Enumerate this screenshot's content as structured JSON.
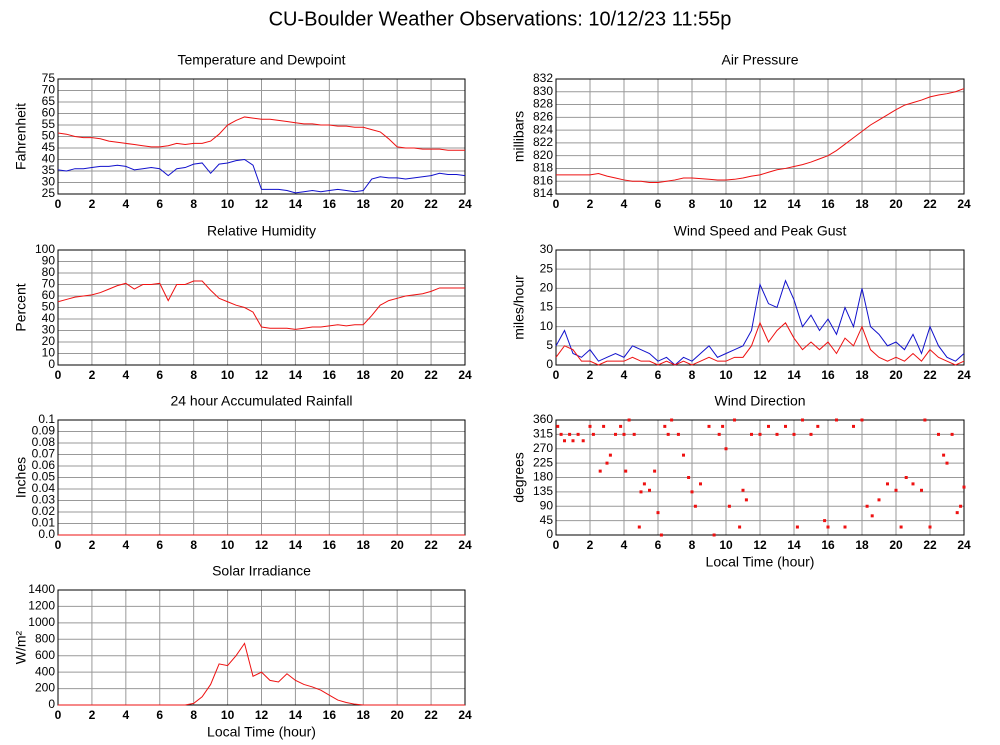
{
  "title": "CU-Boulder Weather Observations: 10/12/23 11:55p",
  "chart_data": [
    {
      "type": "line",
      "title": "Temperature and Dewpoint",
      "ylabel": "Fahrenheit",
      "grid": true,
      "x": [
        0,
        0.5,
        1,
        1.5,
        2,
        2.5,
        3,
        3.5,
        4,
        4.5,
        5,
        5.5,
        6,
        6.5,
        7,
        7.5,
        8,
        8.5,
        9,
        9.5,
        10,
        10.5,
        11,
        11.5,
        12,
        12.5,
        13,
        13.5,
        14,
        14.5,
        15,
        15.5,
        16,
        16.5,
        17,
        17.5,
        18,
        18.5,
        19,
        19.5,
        20,
        20.5,
        21,
        21.5,
        22,
        22.5,
        23,
        23.5,
        24
      ],
      "xlim": [
        0,
        24
      ],
      "xticks": [
        0,
        2,
        4,
        6,
        8,
        10,
        12,
        14,
        16,
        18,
        20,
        22,
        24
      ],
      "ylim": [
        25,
        75
      ],
      "yticks": [
        25,
        30,
        35,
        40,
        45,
        50,
        55,
        60,
        65,
        70,
        75
      ],
      "series": [
        {
          "color": "#ee1111",
          "values": [
            51.5,
            51,
            50,
            49.5,
            49.5,
            49,
            48,
            47.5,
            47,
            46.5,
            46,
            45.5,
            45.5,
            46,
            47,
            46.5,
            47,
            47,
            48,
            51,
            55,
            57,
            58.5,
            58,
            57.5,
            57.5,
            57,
            56.5,
            56,
            55.5,
            55.5,
            55,
            55,
            54.5,
            54.5,
            54,
            54,
            53,
            52,
            49,
            45.5,
            45,
            45,
            44.5,
            44.5,
            44.5,
            44,
            44,
            44
          ]
        },
        {
          "color": "#1111cc",
          "values": [
            35.5,
            35,
            36,
            36,
            36.5,
            37,
            37,
            37.5,
            37,
            35.5,
            36,
            36.5,
            36,
            33,
            36,
            36.5,
            38,
            38.5,
            34,
            38,
            38.5,
            39.5,
            40,
            37.5,
            27,
            27,
            27,
            26.5,
            25.5,
            26,
            26.5,
            26,
            26.5,
            27,
            26.5,
            26,
            26.5,
            31.5,
            32.5,
            32,
            32,
            31.5,
            32,
            32.5,
            33,
            34,
            33.5,
            33.5,
            33
          ]
        }
      ]
    },
    {
      "type": "line",
      "title": "Air Pressure",
      "ylabel": "millibars",
      "grid": true,
      "x": [
        0,
        0.5,
        1,
        1.5,
        2,
        2.5,
        3,
        3.5,
        4,
        4.5,
        5,
        5.5,
        6,
        6.5,
        7,
        7.5,
        8,
        8.5,
        9,
        9.5,
        10,
        10.5,
        11,
        11.5,
        12,
        12.5,
        13,
        13.5,
        14,
        14.5,
        15,
        15.5,
        16,
        16.5,
        17,
        17.5,
        18,
        18.5,
        19,
        19.5,
        20,
        20.5,
        21,
        21.5,
        22,
        22.5,
        23,
        23.5,
        24
      ],
      "xlim": [
        0,
        24
      ],
      "xticks": [
        0,
        2,
        4,
        6,
        8,
        10,
        12,
        14,
        16,
        18,
        20,
        22,
        24
      ],
      "ylim": [
        814,
        832
      ],
      "yticks": [
        814,
        816,
        818,
        820,
        822,
        824,
        826,
        828,
        830,
        832
      ],
      "series": [
        {
          "color": "#ee1111",
          "values": [
            817,
            817,
            817,
            817,
            817,
            817.2,
            816.8,
            816.5,
            816.2,
            816,
            816,
            815.8,
            815.8,
            816,
            816.2,
            816.5,
            816.5,
            816.4,
            816.3,
            816.2,
            816.2,
            816.3,
            816.5,
            816.8,
            817,
            817.4,
            817.8,
            818,
            818.3,
            818.6,
            819,
            819.5,
            820,
            820.8,
            821.8,
            822.8,
            823.8,
            824.8,
            825.6,
            826.4,
            827.2,
            827.9,
            828.3,
            828.7,
            829.2,
            829.5,
            829.7,
            830,
            830.5
          ]
        }
      ]
    },
    {
      "type": "line",
      "title": "Relative Humidity",
      "ylabel": "Percent",
      "grid": true,
      "x": [
        0,
        0.5,
        1,
        1.5,
        2,
        2.5,
        3,
        3.5,
        4,
        4.5,
        5,
        5.5,
        6,
        6.5,
        7,
        7.5,
        8,
        8.5,
        9,
        9.5,
        10,
        10.5,
        11,
        11.5,
        12,
        12.5,
        13,
        13.5,
        14,
        14.5,
        15,
        15.5,
        16,
        16.5,
        17,
        17.5,
        18,
        18.5,
        19,
        19.5,
        20,
        20.5,
        21,
        21.5,
        22,
        22.5,
        23,
        23.5,
        24
      ],
      "xlim": [
        0,
        24
      ],
      "xticks": [
        0,
        2,
        4,
        6,
        8,
        10,
        12,
        14,
        16,
        18,
        20,
        22,
        24
      ],
      "ylim": [
        0,
        100
      ],
      "yticks": [
        0,
        10,
        20,
        30,
        40,
        50,
        60,
        70,
        80,
        90,
        100
      ],
      "series": [
        {
          "color": "#ee1111",
          "values": [
            55,
            57,
            59,
            60,
            61,
            63,
            66,
            69,
            71,
            66,
            70,
            70,
            71,
            56,
            70,
            70,
            73,
            73,
            65,
            58,
            55,
            52,
            50,
            46,
            33,
            32,
            32,
            32,
            31,
            32,
            33,
            33,
            34,
            35,
            34,
            35,
            35,
            43,
            52,
            56,
            58,
            60,
            61,
            62,
            64,
            67,
            67,
            67,
            67
          ]
        }
      ]
    },
    {
      "type": "line",
      "title": "Wind Speed and Peak Gust",
      "ylabel": "miles/hour",
      "grid": true,
      "x": [
        0,
        0.5,
        1,
        1.5,
        2,
        2.5,
        3,
        3.5,
        4,
        4.5,
        5,
        5.5,
        6,
        6.5,
        7,
        7.5,
        8,
        8.5,
        9,
        9.5,
        10,
        10.5,
        11,
        11.5,
        12,
        12.5,
        13,
        13.5,
        14,
        14.5,
        15,
        15.5,
        16,
        16.5,
        17,
        17.5,
        18,
        18.5,
        19,
        19.5,
        20,
        20.5,
        21,
        21.5,
        22,
        22.5,
        23,
        23.5,
        24
      ],
      "xlim": [
        0,
        24
      ],
      "xticks": [
        0,
        2,
        4,
        6,
        8,
        10,
        12,
        14,
        16,
        18,
        20,
        22,
        24
      ],
      "ylim": [
        0,
        30
      ],
      "yticks": [
        0,
        5,
        10,
        15,
        20,
        25,
        30
      ],
      "series": [
        {
          "color": "#1111cc",
          "values": [
            5,
            9,
            3,
            2,
            4,
            1,
            2,
            3,
            2,
            5,
            4,
            3,
            1,
            2,
            0,
            2,
            1,
            3,
            5,
            2,
            3,
            4,
            5,
            9,
            21,
            16,
            15,
            22,
            17,
            10,
            13,
            9,
            12,
            8,
            15,
            10,
            20,
            10,
            8,
            5,
            6,
            4,
            8,
            3,
            10,
            5,
            2,
            1,
            3
          ]
        },
        {
          "color": "#ee1111",
          "values": [
            2,
            5,
            4,
            1,
            1,
            0,
            1,
            1,
            1,
            2,
            1,
            1,
            0,
            1,
            0,
            1,
            0,
            1,
            2,
            1,
            1,
            2,
            2,
            5,
            11,
            6,
            9,
            11,
            7,
            4,
            6,
            4,
            6,
            3,
            7,
            5,
            10,
            4,
            2,
            1,
            2,
            1,
            3,
            1,
            4,
            2,
            1,
            0,
            1
          ]
        }
      ]
    },
    {
      "type": "line",
      "title": "24 hour Accumulated Rainfall",
      "ylabel": "Inches",
      "grid": true,
      "x": [
        0,
        24
      ],
      "xlim": [
        0,
        24
      ],
      "xticks": [
        0,
        2,
        4,
        6,
        8,
        10,
        12,
        14,
        16,
        18,
        20,
        22,
        24
      ],
      "ylim": [
        0,
        0.1
      ],
      "yticks": [
        {
          "value": 0,
          "label": "0.0"
        },
        0.01,
        0.02,
        0.03,
        0.04,
        0.05,
        0.06,
        0.07,
        0.08,
        0.09,
        0.1
      ],
      "series": [
        {
          "color": "#ee1111",
          "values": [
            0,
            0
          ]
        }
      ]
    },
    {
      "type": "scatter",
      "title": "Wind Direction",
      "ylabel": "degrees",
      "xlabel": "Local Time (hour)",
      "grid": true,
      "x": [
        0.1,
        0.3,
        0.5,
        0.8,
        1,
        1.3,
        1.6,
        2,
        2.2,
        2.6,
        2.8,
        3,
        3.2,
        3.5,
        3.8,
        4,
        4.1,
        4.3,
        4.6,
        4.9,
        5,
        5.2,
        5.5,
        5.8,
        6,
        6.2,
        6.4,
        6.6,
        6.8,
        7.2,
        7.5,
        7.8,
        8,
        8.2,
        8.5,
        9,
        9.3,
        9.6,
        9.8,
        10,
        10.2,
        10.5,
        10.8,
        11,
        11.2,
        11.5,
        12,
        12.5,
        13,
        13.5,
        14,
        14.2,
        14.5,
        15,
        15.4,
        15.8,
        16,
        16.5,
        17,
        17.5,
        18,
        18.3,
        18.6,
        19,
        19.5,
        20,
        20.3,
        20.6,
        21,
        21.5,
        21.7,
        22,
        22.5,
        22.8,
        23,
        23.3,
        23.6,
        23.8,
        24
      ],
      "xlim": [
        0,
        24
      ],
      "xticks": [
        0,
        2,
        4,
        6,
        8,
        10,
        12,
        14,
        16,
        18,
        20,
        22,
        24
      ],
      "ylim": [
        0,
        360
      ],
      "yticks": [
        0,
        45,
        90,
        135,
        180,
        225,
        270,
        315,
        360
      ],
      "series": [
        {
          "color": "#ee1111",
          "values": [
            340,
            315,
            295,
            315,
            295,
            315,
            295,
            340,
            315,
            200,
            340,
            225,
            250,
            315,
            340,
            315,
            200,
            360,
            315,
            25,
            135,
            160,
            140,
            200,
            70,
            0,
            340,
            315,
            360,
            315,
            250,
            180,
            135,
            90,
            160,
            340,
            0,
            315,
            340,
            270,
            90,
            360,
            25,
            140,
            110,
            315,
            315,
            340,
            315,
            340,
            315,
            25,
            360,
            315,
            340,
            45,
            25,
            360,
            25,
            340,
            360,
            90,
            60,
            110,
            160,
            140,
            25,
            180,
            160,
            140,
            360,
            25,
            315,
            250,
            225,
            315,
            70,
            90,
            150
          ]
        }
      ]
    },
    {
      "type": "line",
      "title": "Solar Irradiance",
      "ylabel": "W/m²",
      "xlabel": "Local Time (hour)",
      "grid": true,
      "x": [
        0,
        0.5,
        1,
        1.5,
        2,
        2.5,
        3,
        3.5,
        4,
        4.5,
        5,
        5.5,
        6,
        6.5,
        7,
        7.5,
        8,
        8.5,
        9,
        9.5,
        10,
        10.5,
        11,
        11.5,
        12,
        12.5,
        13,
        13.5,
        14,
        14.5,
        15,
        15.5,
        16,
        16.5,
        17,
        17.5,
        18,
        18.5,
        19,
        19.5,
        20,
        20.5,
        21,
        21.5,
        22,
        22.5,
        23,
        23.5,
        24
      ],
      "xlim": [
        0,
        24
      ],
      "xticks": [
        0,
        2,
        4,
        6,
        8,
        10,
        12,
        14,
        16,
        18,
        20,
        22,
        24
      ],
      "ylim": [
        0,
        1400
      ],
      "yticks": [
        0,
        200,
        400,
        600,
        800,
        1000,
        1200,
        1400
      ],
      "series": [
        {
          "color": "#ee1111",
          "values": [
            0,
            0,
            0,
            0,
            0,
            0,
            0,
            0,
            0,
            0,
            0,
            0,
            0,
            0,
            0,
            0,
            20,
            100,
            250,
            500,
            480,
            600,
            750,
            350,
            400,
            300,
            280,
            380,
            300,
            250,
            220,
            180,
            120,
            60,
            30,
            10,
            0,
            0,
            0,
            0,
            0,
            0,
            0,
            0,
            0,
            0,
            0,
            0,
            0
          ]
        }
      ]
    }
  ]
}
